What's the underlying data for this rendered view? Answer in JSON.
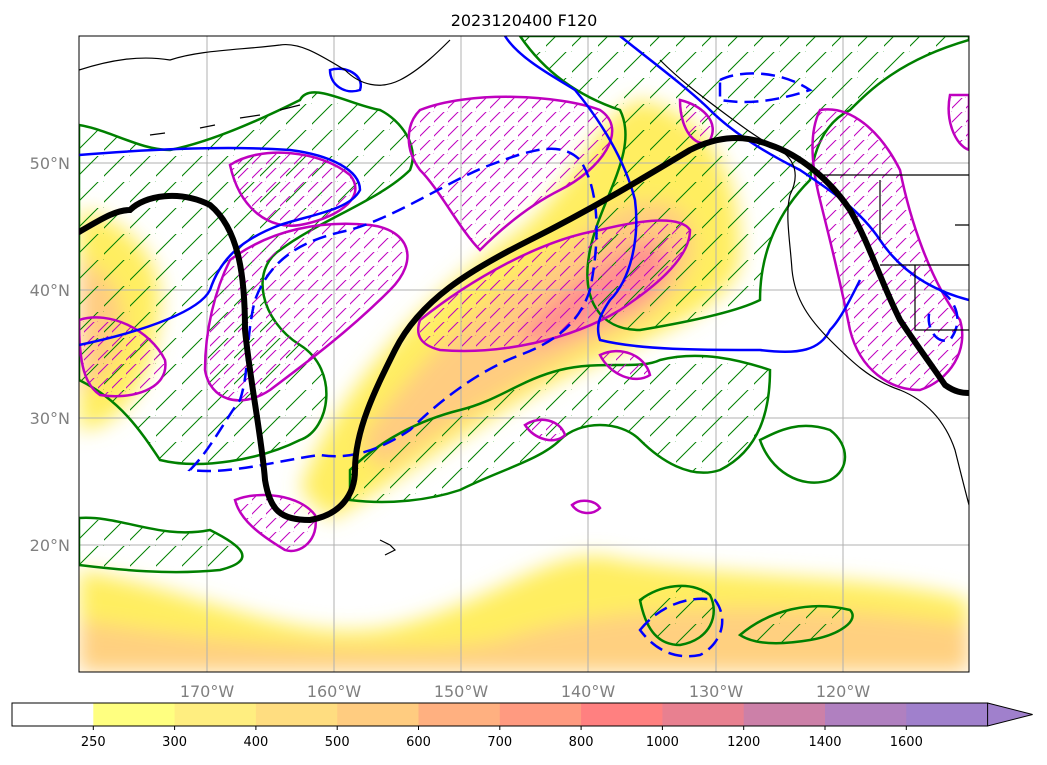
{
  "title": "2023120400 F120",
  "map": {
    "lon_range": [
      -180,
      -110
    ],
    "lat_range": [
      10,
      60
    ],
    "lat_labels": [
      "50°N",
      "40°N",
      "30°N",
      "20°N"
    ],
    "lon_labels": [
      "170°W",
      "160°W",
      "150°W",
      "140°W",
      "130°W",
      "120°W"
    ],
    "gridlines": true,
    "hatching": "diagonal",
    "colors": {
      "coastline": "#000000",
      "green_contour": "#008000",
      "magenta_contour": "#bf00bf",
      "blue_contour": "#0000ff",
      "black_contour": "#000000",
      "grid": "#b0b0b0"
    }
  },
  "colorbar": {
    "levels": [
      "250",
      "300",
      "400",
      "500",
      "600",
      "700",
      "800",
      "1000",
      "1200",
      "1400",
      "1600"
    ],
    "colors": [
      "#ffffff",
      "#ffff80",
      "#ffee80",
      "#ffdd80",
      "#ffcc80",
      "#ffb080",
      "#ff9a80",
      "#ff8080",
      "#e88090",
      "#cc80a8",
      "#b080c0",
      "#a080cc"
    ],
    "extend": "max"
  }
}
